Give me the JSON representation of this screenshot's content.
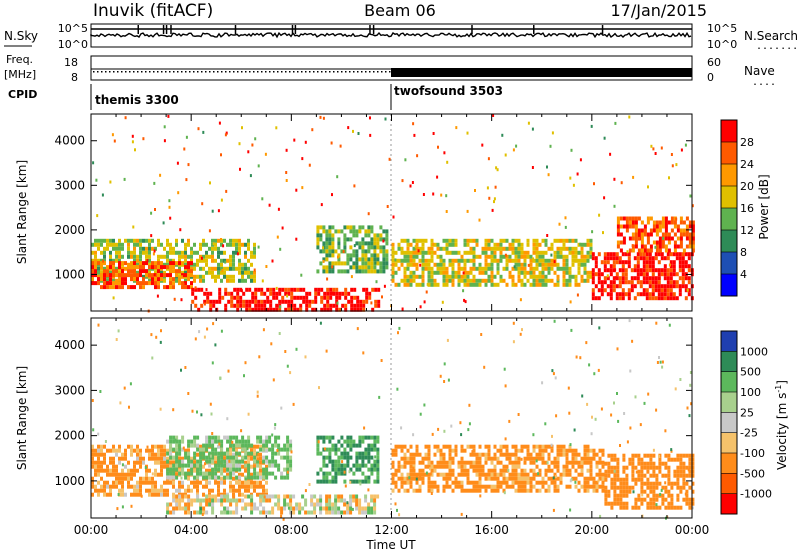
{
  "header": {
    "station": "Inuvik (fitACF)",
    "beam": "Beam 06",
    "date": "17/Jan/2015"
  },
  "nsky_panel": {
    "left_label": "N.Sky",
    "left_ticks": [
      "10^5",
      "10^0"
    ],
    "right_ticks": [
      "10^5",
      "10^0"
    ],
    "right_label": "N.Search",
    "right_dots": "........"
  },
  "freq_panel": {
    "left_label_top": "Freq.",
    "left_label_unit": "[MHz]",
    "left_ticks": [
      "18",
      "8"
    ],
    "right_ticks": [
      "60",
      "0"
    ],
    "right_label": "Nave",
    "right_dots": "...."
  },
  "cpid_panel": {
    "label": "CPID",
    "programs": [
      "themis 3300",
      "twofsound 3503"
    ]
  },
  "time_axis": {
    "ticks": [
      "00:00",
      "04:00",
      "08:00",
      "12:00",
      "16:00",
      "20:00",
      "00:00"
    ],
    "label": "Time UT"
  },
  "power_panel": {
    "ylabel": "Slant Range [km]",
    "yticks": [
      "4000",
      "3000",
      "2000",
      "1000"
    ],
    "colorbar_label": "Power [dB]",
    "colorbar_ticks": [
      "28",
      "24",
      "20",
      "16",
      "12",
      "8",
      "4"
    ],
    "colors": [
      "#0000ff",
      "#1e4fb4",
      "#2e8b57",
      "#5fb24f",
      "#e0c000",
      "#ff9900",
      "#ff5a00",
      "#ff0000"
    ]
  },
  "velocity_panel": {
    "ylabel": "Slant Range [km]",
    "yticks": [
      "4000",
      "3000",
      "2000",
      "1000"
    ],
    "colorbar_label": "Velocity [m s",
    "colorbar_label_sup": "-1",
    "colorbar_label_end": "]",
    "colorbar_ticks": [
      "1000",
      "500",
      "100",
      "25",
      "-25",
      "-100",
      "-500",
      "-1000"
    ],
    "colors": [
      "#1f3fb0",
      "#2e8b57",
      "#5cb85c",
      "#a8d08d",
      "#c8c8c8",
      "#f5c26b",
      "#ff8c1a",
      "#ff5a00",
      "#ff0000"
    ]
  },
  "chart_data": [
    {
      "type": "heatmap",
      "title": "Power [dB]",
      "xlabel": "Time UT",
      "ylabel": "Slant Range [km]",
      "xlim": [
        "00:00",
        "24:00"
      ],
      "ylim": [
        180,
        4600
      ],
      "color_scale": [
        0,
        32
      ],
      "regions": [
        {
          "t": [
            0.0,
            6.5
          ],
          "r": [
            900,
            1800
          ],
          "value": 16
        },
        {
          "t": [
            0.0,
            4.0
          ],
          "r": [
            700,
            1300
          ],
          "value": 26
        },
        {
          "t": [
            4.0,
            11.5
          ],
          "r": [
            200,
            700
          ],
          "value": 30
        },
        {
          "t": [
            9.0,
            11.8
          ],
          "r": [
            1100,
            2100
          ],
          "value": 14
        },
        {
          "t": [
            12.0,
            20.0
          ],
          "r": [
            800,
            1800
          ],
          "value": 18
        },
        {
          "t": [
            20.0,
            24.0
          ],
          "r": [
            500,
            1500
          ],
          "value": 30
        },
        {
          "t": [
            21.0,
            24.0
          ],
          "r": [
            1500,
            2300
          ],
          "value": 26
        }
      ]
    },
    {
      "type": "heatmap",
      "title": "Velocity [m s-1]",
      "xlabel": "Time UT",
      "ylabel": "Slant Range [km]",
      "xlim": [
        "00:00",
        "24:00"
      ],
      "ylim": [
        180,
        4600
      ],
      "color_scale": [
        -1000,
        1000
      ],
      "regions": [
        {
          "t": [
            0.0,
            7.0
          ],
          "r": [
            700,
            1800
          ],
          "value": -150
        },
        {
          "t": [
            3.0,
            8.0
          ],
          "r": [
            1100,
            2000
          ],
          "value": 150
        },
        {
          "t": [
            3.0,
            11.5
          ],
          "r": [
            300,
            700
          ],
          "value": 0
        },
        {
          "t": [
            9.0,
            11.5
          ],
          "r": [
            1000,
            2000
          ],
          "value": 500
        },
        {
          "t": [
            12.0,
            20.5
          ],
          "r": [
            800,
            1800
          ],
          "value": -200
        },
        {
          "t": [
            20.5,
            24.0
          ],
          "r": [
            400,
            1600
          ],
          "value": -300
        }
      ]
    }
  ]
}
